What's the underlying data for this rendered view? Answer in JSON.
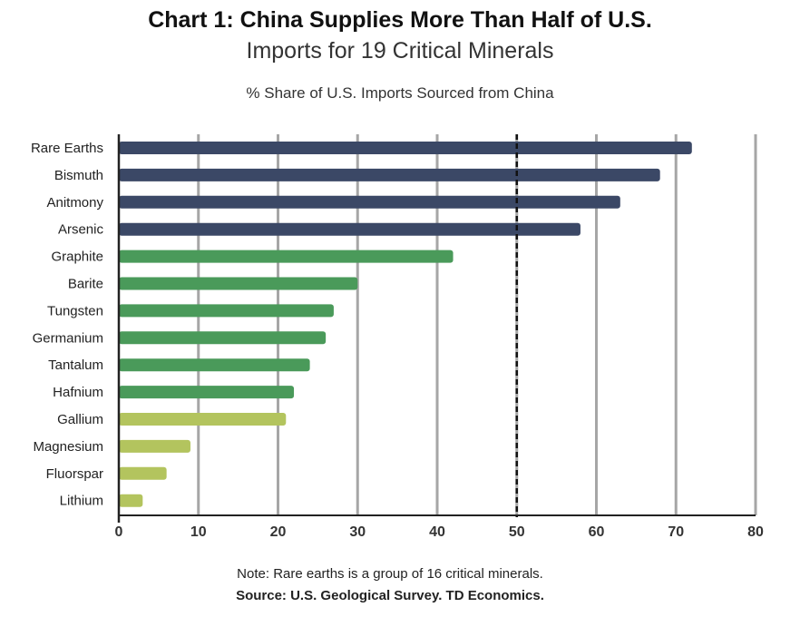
{
  "chart_data": {
    "type": "bar",
    "orientation": "horizontal",
    "title_line1": "Chart 1: China Supplies More Than Half of U.S.",
    "title_line2": "Imports for 19 Critical Minerals",
    "subtitle": "% Share of U.S. Imports Sourced from China",
    "categories": [
      "Rare Earths",
      "Bismuth",
      "Anitmony",
      "Arsenic",
      "Graphite",
      "Barite",
      "Tungsten",
      "Germanium",
      "Tantalum",
      "Hafnium",
      "Gallium",
      "Magnesium",
      "Fluorspar",
      "Lithium"
    ],
    "values": [
      72,
      68,
      63,
      58,
      42,
      30,
      27,
      26,
      24,
      22,
      21,
      9,
      6,
      3
    ],
    "bar_colors": [
      "#3b4866",
      "#3b4866",
      "#3b4866",
      "#3b4866",
      "#4a9a5a",
      "#4a9a5a",
      "#4a9a5a",
      "#4a9a5a",
      "#4a9a5a",
      "#4a9a5a",
      "#b3c45e",
      "#b3c45e",
      "#b3c45e",
      "#b3c45e"
    ],
    "xlim": [
      0,
      80
    ],
    "xticks": [
      0,
      10,
      20,
      30,
      40,
      50,
      60,
      70,
      80
    ],
    "reference_line": {
      "value": 50,
      "style": "dashed"
    },
    "grid": true,
    "gridline_color": "#a6a6a6"
  },
  "note": "Note: Rare earths is a group of 16 critical minerals.",
  "source": "Source: U.S. Geological Survey. TD Economics."
}
